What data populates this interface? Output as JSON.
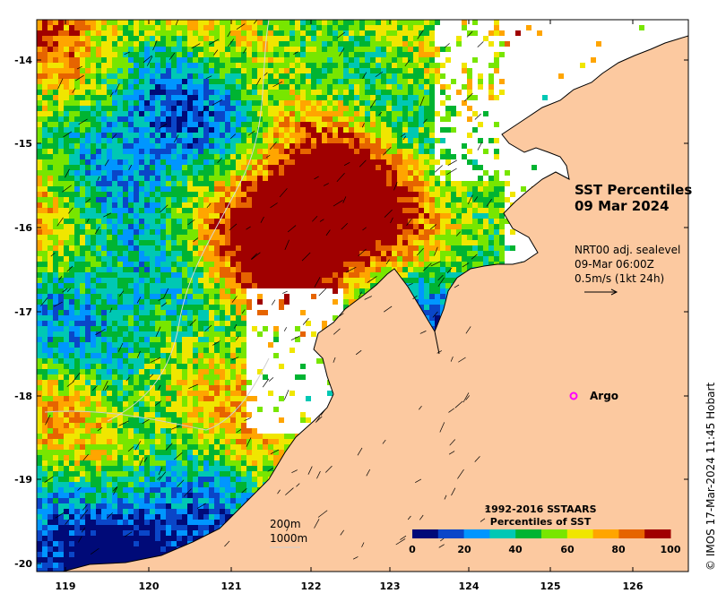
{
  "map": {
    "title_line1": "SST Percentiles",
    "title_line2": "09 Mar 2024",
    "current_info": {
      "line1": "NRT00 adj. sealevel",
      "line2": "09-Mar 06:00Z",
      "line3": "0.5m/s (1kt 24h)"
    },
    "argo_label": "Argo",
    "contour_labels": [
      "200m",
      "1000m"
    ],
    "copyright": "© IMOS 17-Mar-2024 11:45 Hobart",
    "x_ticks": [
      "119",
      "120",
      "121",
      "122",
      "123",
      "124",
      "125",
      "126"
    ],
    "y_ticks": [
      "-14",
      "-15",
      "-16",
      "-17",
      "-18",
      "-19",
      "-20"
    ],
    "colorbar": {
      "title_line1": "1992-2016 SSTAARS",
      "title_line2": "Percentiles of SST",
      "ticks": [
        "0",
        "20",
        "40",
        "60",
        "80",
        "100"
      ],
      "colors": [
        "#000a78",
        "#0a46c8",
        "#0096ff",
        "#00c8b4",
        "#00b432",
        "#78e600",
        "#f0e600",
        "#ffa500",
        "#e66400",
        "#a00000"
      ]
    },
    "colors": {
      "land": "#fcc9a0",
      "argo": "#ff00ff"
    }
  }
}
